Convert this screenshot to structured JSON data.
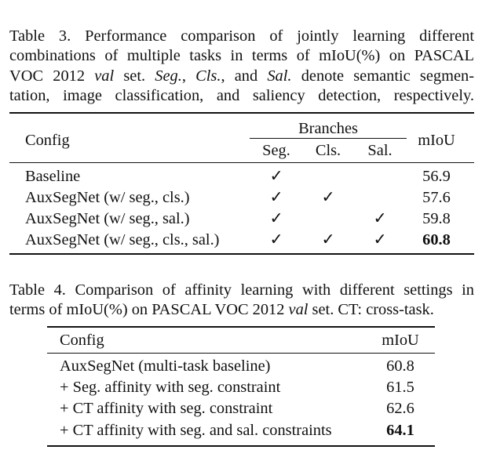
{
  "table3": {
    "caption_lines": [
      "Table 3. Performance comparison of jointly learning different",
      "combinations of multiple tasks in terms of mIoU(%) on PASCAL",
      "VOC 2012 val set. Seg., Cls., and Sal. denote semantic segmen-",
      "tation, image classification, and saliency detection, respectively."
    ],
    "caption_parts": {
      "l3_a": "VOC 2012 ",
      "l3_val": "val",
      "l3_b": " set. ",
      "l3_seg": "Seg.",
      "l3_c": ", ",
      "l3_cls": "Cls.",
      "l3_d": ", and ",
      "l3_sal": "Sal.",
      "l3_e": " denote semantic segmen-"
    },
    "headers": {
      "config": "Config",
      "branches": "Branches",
      "seg": "Seg.",
      "cls": "Cls.",
      "sal": "Sal.",
      "miou": "mIoU"
    },
    "check_symbol": "✓",
    "rows": [
      {
        "config": "Baseline",
        "seg": true,
        "cls": false,
        "sal": false,
        "miou": "56.9",
        "best": false
      },
      {
        "config": "AuxSegNet (w/ seg., cls.)",
        "seg": true,
        "cls": true,
        "sal": false,
        "miou": "57.6",
        "best": false
      },
      {
        "config": "AuxSegNet (w/ seg., sal.)",
        "seg": true,
        "cls": false,
        "sal": true,
        "miou": "59.8",
        "best": false
      },
      {
        "config": "AuxSegNet (w/ seg., cls., sal.)",
        "seg": true,
        "cls": true,
        "sal": true,
        "miou": "60.8",
        "best": true
      }
    ]
  },
  "table4": {
    "caption_line1": "Table 4. Comparison of affinity learning with different settings in",
    "caption_line2_a": "terms of mIoU(%) on PASCAL VOC 2012 ",
    "caption_line2_val": "val",
    "caption_line2_b": " set. CT: cross-task.",
    "headers": {
      "config": "Config",
      "miou": "mIoU"
    },
    "rows": [
      {
        "config": "AuxSegNet (multi-task baseline)",
        "miou": "60.8",
        "best": false
      },
      {
        "config": "+ Seg. affinity with seg. constraint",
        "miou": "61.5",
        "best": false
      },
      {
        "config": "+ CT affinity with seg. constraint",
        "miou": "62.6",
        "best": false
      },
      {
        "config": "+ CT affinity with seg. and sal. constraints",
        "miou": "64.1",
        "best": true
      }
    ]
  }
}
